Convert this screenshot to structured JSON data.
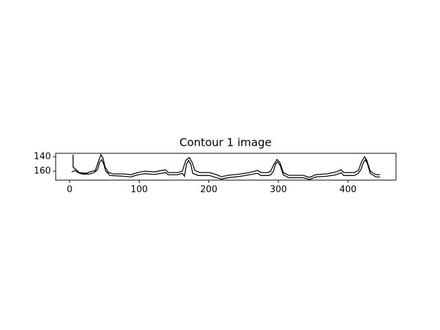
{
  "chart_data": {
    "type": "line",
    "title": "Contour 1 image",
    "xlim": [
      -20,
      469
    ],
    "ylim": [
      172.4,
      135.2
    ],
    "xticks": [
      0,
      100,
      200,
      300,
      400
    ],
    "yticks": [
      140,
      160
    ],
    "series": [
      {
        "color": "#000000",
        "x": [
          5,
          5,
          14,
          24,
          29,
          37,
          41,
          45,
          48,
          51,
          56,
          63,
          78,
          88,
          98,
          108,
          122,
          132,
          138,
          142,
          155,
          162,
          167,
          172,
          176,
          180,
          187,
          201,
          211,
          218,
          228,
          246,
          258,
          266,
          270,
          275,
          285,
          289,
          293,
          298,
          302,
          307,
          315,
          335,
          345,
          354,
          369,
          383,
          390,
          394,
          409,
          415,
          420,
          424,
          427,
          432,
          440,
          446
        ],
        "values": [
          137.1,
          154.3,
          161.9,
          162.9,
          161,
          159,
          147.6,
          137.1,
          141.9,
          154.3,
          161.9,
          163.8,
          163.8,
          164.8,
          161.9,
          160,
          161,
          159,
          158.1,
          161.9,
          161.9,
          160,
          144.8,
          141,
          147.6,
          159,
          161.9,
          161.9,
          164.8,
          167.6,
          165.7,
          163.8,
          161.9,
          160,
          159,
          161.9,
          161.9,
          160,
          151.4,
          143.8,
          147.6,
          161.9,
          165.7,
          165.7,
          168.6,
          164.8,
          163.8,
          161,
          158.1,
          161.9,
          161.9,
          159,
          145.7,
          140,
          144.8,
          160,
          164.8,
          164.8
        ]
      },
      {
        "color": "#000000",
        "x": [
          3,
          8,
          12,
          18,
          28,
          35,
          40,
          43,
          46,
          49,
          52,
          58,
          78,
          88,
          98,
          108,
          122,
          138,
          142,
          155,
          162,
          165,
          168,
          171,
          174,
          177,
          185,
          201,
          211,
          218,
          228,
          246,
          258,
          270,
          275,
          285,
          289,
          293,
          296,
          299,
          303,
          307,
          315,
          335,
          345,
          354,
          369,
          383,
          390,
          394,
          409,
          415,
          419,
          422,
          425,
          428,
          432,
          440,
          446
        ],
        "values": [
          161,
          159,
          162,
          164,
          164,
          162,
          158,
          148,
          144,
          150,
          160,
          166,
          167,
          168,
          165,
          163.5,
          164.5,
          162,
          165,
          165,
          163,
          167,
          150,
          145,
          150,
          163,
          166,
          166,
          169,
          171,
          169,
          167,
          165,
          163,
          166,
          166,
          165,
          160,
          150,
          147,
          153,
          165,
          169,
          169,
          171.5,
          168,
          167,
          165,
          162,
          166,
          166,
          163,
          157,
          148,
          144,
          150,
          163,
          168,
          168
        ]
      }
    ]
  }
}
